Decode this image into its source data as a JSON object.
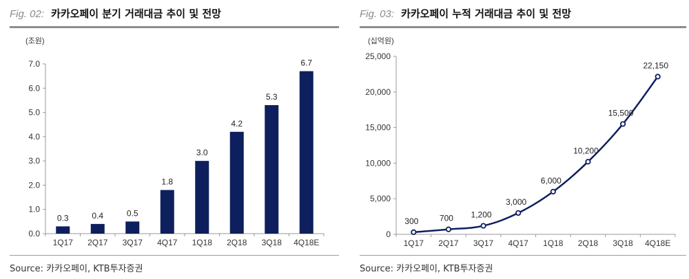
{
  "chart_data": [
    {
      "type": "bar",
      "fig_no": "Fig. 02:",
      "title": "카카오페이 분기 거래대금 추이 및 전망",
      "unit": "(조원)",
      "categories": [
        "1Q17",
        "2Q17",
        "3Q17",
        "4Q17",
        "1Q18",
        "2Q18",
        "3Q18",
        "4Q18E"
      ],
      "values": [
        0.3,
        0.4,
        0.5,
        1.8,
        3.0,
        4.2,
        5.3,
        6.7
      ],
      "value_labels": [
        "0.3",
        "0.4",
        "0.5",
        "1.8",
        "3.0",
        "4.2",
        "5.3",
        "6.7"
      ],
      "yticks": [
        "0.0",
        "1.0",
        "2.0",
        "3.0",
        "4.0",
        "5.0",
        "6.0",
        "7.0"
      ],
      "ylim": [
        0,
        7
      ],
      "grid": false,
      "color": "#0e1f5e",
      "source": "Source: 카카오페이, KTB투자증권"
    },
    {
      "type": "line",
      "fig_no": "Fig. 03:",
      "title": "카카오페이 누적 거래대금 추이 및 전망",
      "unit": "(십억원)",
      "categories": [
        "1Q17",
        "2Q17",
        "3Q17",
        "4Q17",
        "1Q18",
        "2Q18",
        "3Q18",
        "4Q18E"
      ],
      "values": [
        300,
        700,
        1200,
        3000,
        6000,
        10200,
        15500,
        22150
      ],
      "value_labels": [
        "300",
        "700",
        "1,200",
        "3,000",
        "6,000",
        "10,200",
        "15,500",
        "22,150"
      ],
      "yticks": [
        "0",
        "5,000",
        "10,000",
        "15,000",
        "20,000",
        "25,000"
      ],
      "ylim": [
        0,
        25000
      ],
      "grid": false,
      "color": "#0e1f5e",
      "source": "Source: 카카오페이, KTB투자증권"
    }
  ]
}
